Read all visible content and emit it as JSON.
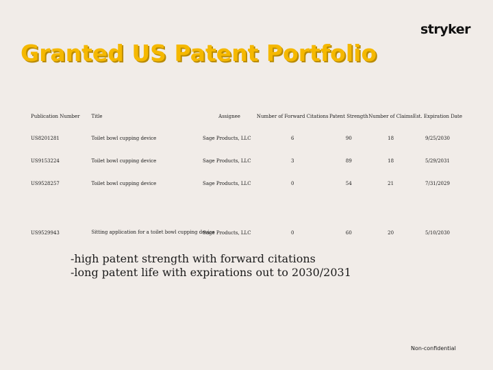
{
  "header": {
    "logo_text": "stryker",
    "title": "Granted US Patent Portfolio",
    "title_color": "#f5b800"
  },
  "table": {
    "columns": [
      "Publication Number",
      "Title",
      "Assignee",
      "Number of Forward Citations",
      "Patent Strength",
      "Number of Claims",
      "Est. Expiration Date"
    ],
    "rows": [
      [
        "US8201281",
        "Toilet bowl cupping device",
        "Sage Products, LLC",
        "6",
        "90",
        "18",
        "9/25/2030"
      ],
      [
        "US9153224",
        "Toilet bowl cupping device",
        "Sage Products, LLC",
        "3",
        "89",
        "18",
        "5/29/2031"
      ],
      [
        "US9528257",
        "Toilet bowl cupping device",
        "Sage Products, LLC",
        "0",
        "54",
        "21",
        "7/31/2029"
      ],
      [
        "US9529943",
        "Sitting application for a toilet bowl cupping device",
        "Sage Products, LLC",
        "0",
        "60",
        "20",
        "5/10/2030"
      ]
    ]
  },
  "notes": [
    "-high patent strength with forward citations",
    "-long patent life with expirations out to 2030/2031"
  ],
  "footer": {
    "label": "Non-confidential"
  }
}
